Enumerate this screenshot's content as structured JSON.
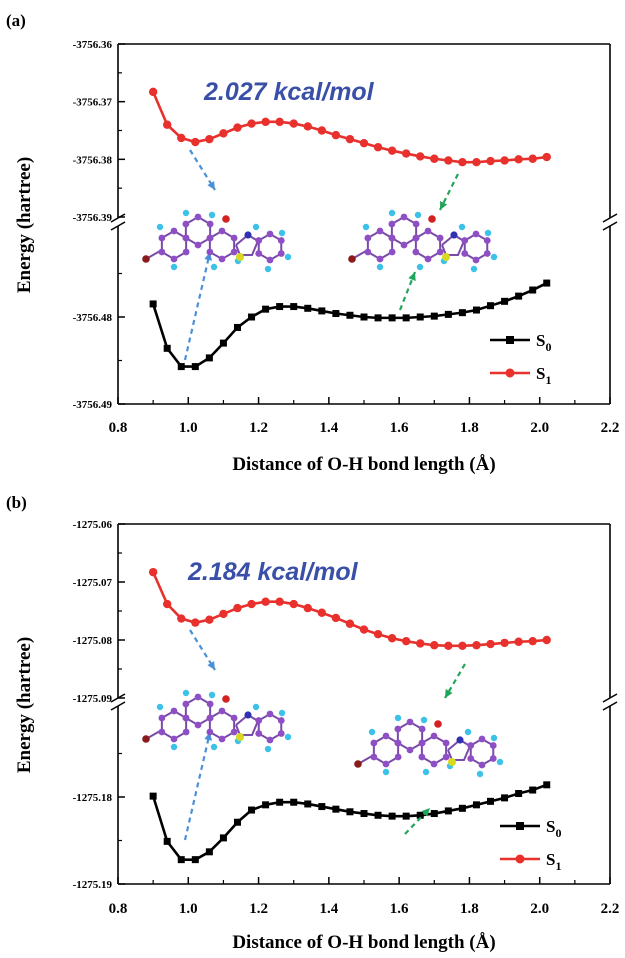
{
  "colors": {
    "s0": "#000000",
    "s1": "#e8302c",
    "annotation": "#3a4fa7",
    "blue_arrow": "#4a90d9",
    "green_arrow": "#21a55a",
    "atom_c": "#8e4fc4",
    "atom_h": "#3cc2e8",
    "atom_o": "#d42020",
    "atom_n": "#3030b0",
    "atom_s": "#d8d820",
    "atom_br": "#8b1a1a"
  },
  "icons": {
    "molecule": "molecule-structure-icon",
    "arrow": "dashed-arrow-icon"
  },
  "chart_data": [
    {
      "type": "line",
      "panel_label": "(a)",
      "annotation": "2.027 kcal/mol",
      "xlabel": "Distance of O-H bond length (Å)",
      "ylabel": "Energy (hartree)",
      "xlim": [
        0.8,
        2.2
      ],
      "xticks": [
        "0.8",
        "1.0",
        "1.2",
        "1.4",
        "1.6",
        "1.8",
        "2.0",
        "2.2"
      ],
      "broken_y_axis": true,
      "upper_ylim": [
        -3756.39,
        -3756.36
      ],
      "upper_yticks": [
        "-3756.36",
        "-3756.37",
        "-3756.38",
        "-3756.39"
      ],
      "lower_ylim": [
        -3756.49,
        -3756.47
      ],
      "lower_yticks": [
        "-3756.48",
        "-3756.49"
      ],
      "legend_position": "bottom-right",
      "x": [
        0.9,
        0.94,
        0.98,
        1.02,
        1.06,
        1.1,
        1.14,
        1.18,
        1.22,
        1.26,
        1.3,
        1.34,
        1.38,
        1.42,
        1.46,
        1.5,
        1.54,
        1.58,
        1.62,
        1.66,
        1.7,
        1.74,
        1.78,
        1.82,
        1.86,
        1.9,
        1.94,
        1.98,
        2.02
      ],
      "series": [
        {
          "name": "S0",
          "marker": "square",
          "values": [
            -3756.4785,
            -3756.4836,
            -3756.4857,
            -3756.4857,
            -3756.4847,
            -3756.483,
            -3756.4812,
            -3756.48,
            -3756.4791,
            -3756.4788,
            -3756.4788,
            -3756.479,
            -3756.4793,
            -3756.4796,
            -3756.4798,
            -3756.48,
            -3756.4801,
            -3756.4801,
            -3756.4801,
            -3756.48,
            -3756.4799,
            -3756.4797,
            -3756.4795,
            -3756.4792,
            -3756.4787,
            -3756.4782,
            -3756.4776,
            -3756.4769,
            -3756.4761
          ]
        },
        {
          "name": "S1",
          "marker": "circle",
          "values": [
            -3756.3683,
            -3756.374,
            -3756.3763,
            -3756.377,
            -3756.3765,
            -3756.3755,
            -3756.3745,
            -3756.3738,
            -3756.3735,
            -3756.3735,
            -3756.3738,
            -3756.3743,
            -3756.375,
            -3756.3758,
            -3756.3765,
            -3756.3772,
            -3756.3779,
            -3756.3785,
            -3756.379,
            -3756.3795,
            -3756.3799,
            -3756.3802,
            -3756.3805,
            -3756.3805,
            -3756.3803,
            -3756.3802,
            -3756.38,
            -3756.3799,
            -3756.3796
          ]
        }
      ]
    },
    {
      "type": "line",
      "panel_label": "(b)",
      "annotation": "2.184 kcal/mol",
      "xlabel": "Distance of O-H bond length (Å)",
      "ylabel": "Energy (hartree)",
      "xlim": [
        0.8,
        2.2
      ],
      "xticks": [
        "0.8",
        "1.0",
        "1.2",
        "1.4",
        "1.6",
        "1.8",
        "2.0",
        "2.2"
      ],
      "broken_y_axis": true,
      "upper_ylim": [
        -1275.09,
        -1275.06
      ],
      "upper_yticks": [
        "-1275.06",
        "-1275.07",
        "-1275.08",
        "-1275.09"
      ],
      "lower_ylim": [
        -1275.19,
        -1275.17
      ],
      "lower_yticks": [
        "-1275.18",
        "-1275.19"
      ],
      "legend_position": "bottom-right",
      "x": [
        0.9,
        0.94,
        0.98,
        1.02,
        1.06,
        1.1,
        1.14,
        1.18,
        1.22,
        1.26,
        1.3,
        1.34,
        1.38,
        1.42,
        1.46,
        1.5,
        1.54,
        1.58,
        1.62,
        1.66,
        1.7,
        1.74,
        1.78,
        1.82,
        1.86,
        1.9,
        1.94,
        1.98,
        2.02
      ],
      "series": [
        {
          "name": "S0",
          "marker": "square",
          "values": [
            -1275.1799,
            -1275.1851,
            -1275.1872,
            -1275.1872,
            -1275.1863,
            -1275.1847,
            -1275.1829,
            -1275.1815,
            -1275.1809,
            -1275.1806,
            -1275.1806,
            -1275.1808,
            -1275.1811,
            -1275.1814,
            -1275.1817,
            -1275.1819,
            -1275.1821,
            -1275.1822,
            -1275.1822,
            -1275.1821,
            -1275.1819,
            -1275.1816,
            -1275.1813,
            -1275.1809,
            -1275.1805,
            -1275.1801,
            -1275.1796,
            -1275.1792,
            -1275.1786
          ]
        },
        {
          "name": "S1",
          "marker": "circle",
          "values": [
            -1275.0683,
            -1275.0738,
            -1275.0763,
            -1275.077,
            -1275.0765,
            -1275.0755,
            -1275.0745,
            -1275.0738,
            -1275.0734,
            -1275.0734,
            -1275.0738,
            -1275.0745,
            -1275.0753,
            -1275.0762,
            -1275.0772,
            -1275.0782,
            -1275.079,
            -1275.0797,
            -1275.0802,
            -1275.0806,
            -1275.0809,
            -1275.081,
            -1275.081,
            -1275.0809,
            -1275.0807,
            -1275.0805,
            -1275.0803,
            -1275.0802,
            -1275.08
          ]
        }
      ]
    }
  ]
}
